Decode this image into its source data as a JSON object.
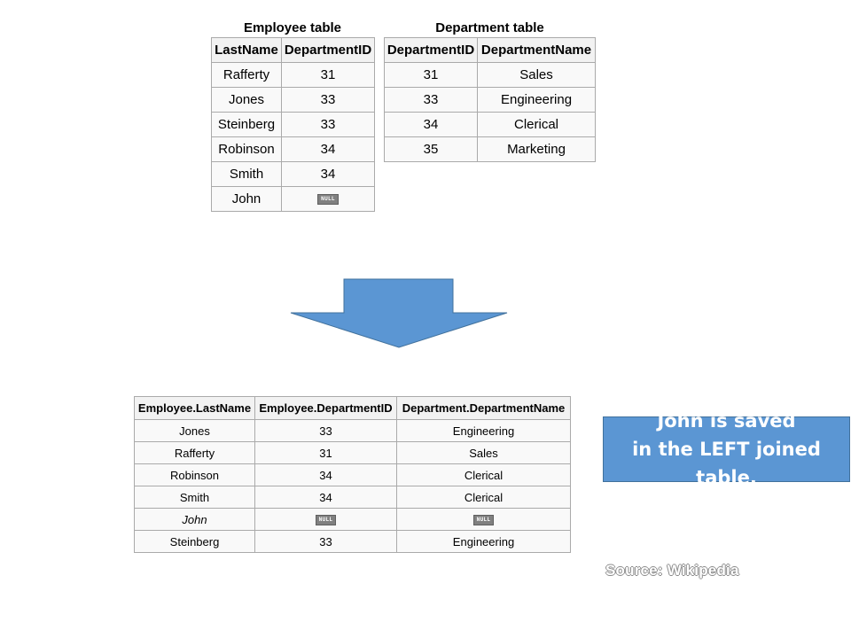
{
  "employee_table": {
    "caption": "Employee table",
    "headers": [
      "LastName",
      "DepartmentID"
    ],
    "rows": [
      [
        "Rafferty",
        "31"
      ],
      [
        "Jones",
        "33"
      ],
      [
        "Steinberg",
        "33"
      ],
      [
        "Robinson",
        "34"
      ],
      [
        "Smith",
        "34"
      ],
      [
        "John",
        "NULL"
      ]
    ]
  },
  "department_table": {
    "caption": "Department table",
    "headers": [
      "DepartmentID",
      "DepartmentName"
    ],
    "rows": [
      [
        "31",
        "Sales"
      ],
      [
        "33",
        "Engineering"
      ],
      [
        "34",
        "Clerical"
      ],
      [
        "35",
        "Marketing"
      ]
    ]
  },
  "result_table": {
    "headers": [
      "Employee.LastName",
      "Employee.DepartmentID",
      "Department.DepartmentName"
    ],
    "rows": [
      [
        "Jones",
        "33",
        "Engineering"
      ],
      [
        "Rafferty",
        "31",
        "Sales"
      ],
      [
        "Robinson",
        "34",
        "Clerical"
      ],
      [
        "Smith",
        "34",
        "Clerical"
      ],
      [
        "John",
        "NULL",
        "NULL"
      ],
      [
        "Steinberg",
        "33",
        "Engineering"
      ]
    ],
    "italic_row_index": 4
  },
  "callout": {
    "line1": "John is saved",
    "line2": "in the LEFT joined table.",
    "color": "#5b96d3"
  },
  "source": "Source: Wikipedia",
  "arrow_color": "#5b96d3"
}
